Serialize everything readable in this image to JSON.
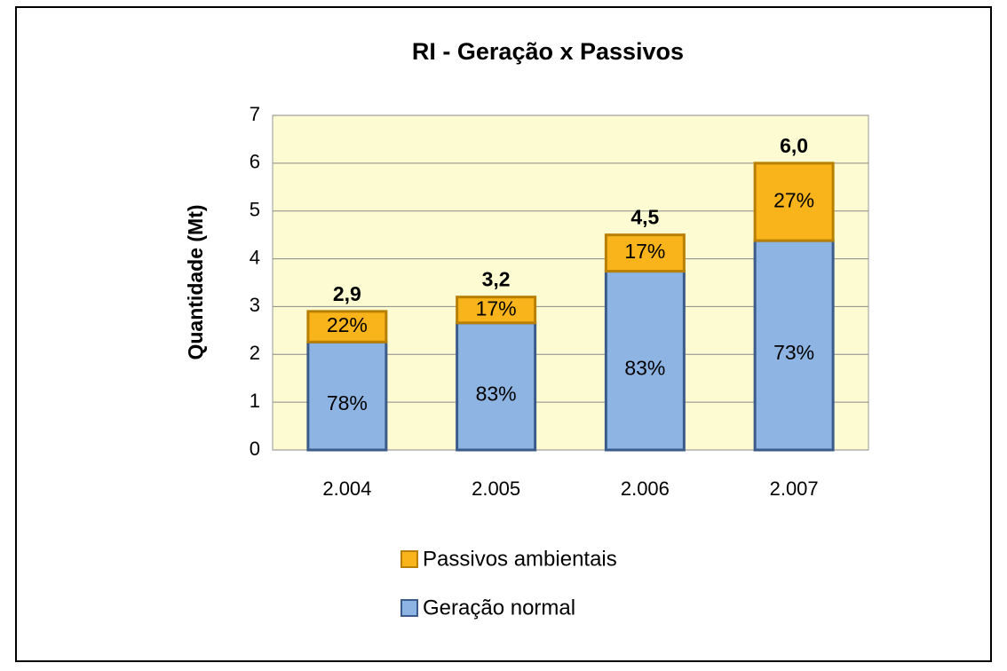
{
  "chart_data": {
    "type": "stacked_bar",
    "title": "RI -  Geração  x Passivos",
    "y_label": "Quantidade (Mt)",
    "categories": [
      "2.004",
      "2.005",
      "2.006",
      "2.007"
    ],
    "series": [
      {
        "name": "Geração normal",
        "color": "#8db4e2",
        "values": [
          2.26,
          2.66,
          3.74,
          4.38
        ],
        "percent": [
          78,
          83,
          83,
          73
        ],
        "percent_labels": [
          "78%",
          "83%",
          "83%",
          "73%"
        ]
      },
      {
        "name": "Passivos ambientais",
        "color": "#f9b31b",
        "values": [
          0.64,
          0.54,
          0.76,
          1.62
        ],
        "percent": [
          22,
          17,
          17,
          27
        ],
        "percent_labels": [
          "22%",
          "17%",
          "17%",
          "27%"
        ]
      }
    ],
    "totals": [
      2.9,
      3.2,
      4.5,
      6.0
    ],
    "total_labels": [
      "2,9",
      "3,2",
      "4,5",
      "6,0"
    ],
    "ylim": [
      0,
      7
    ],
    "yticks": [
      0,
      1,
      2,
      3,
      4,
      5,
      6,
      7
    ],
    "grid": true
  }
}
